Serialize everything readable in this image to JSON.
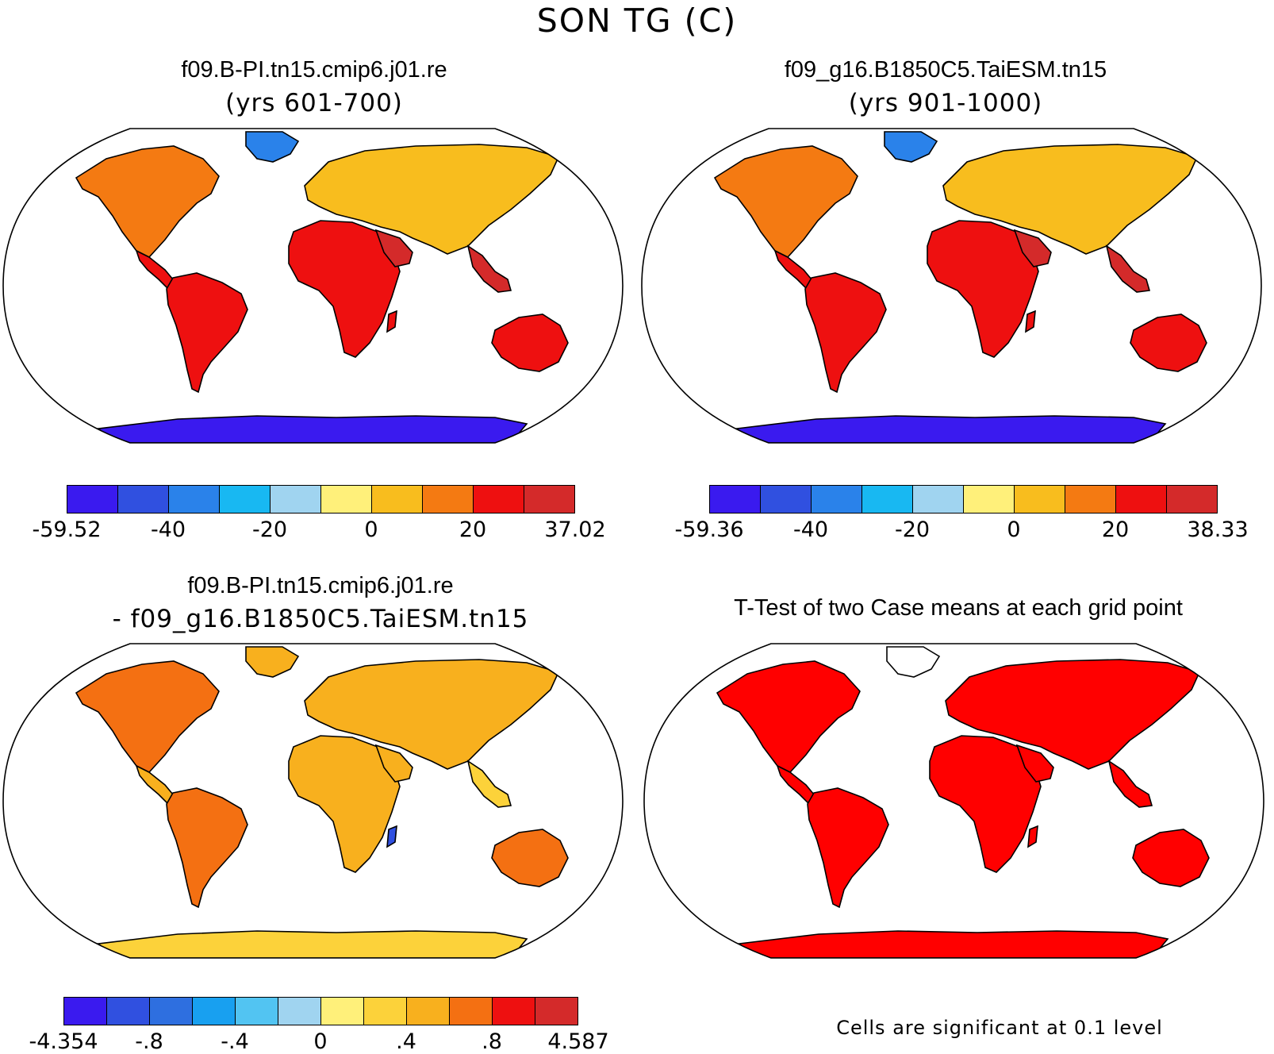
{
  "figure": {
    "title": "SON TG (C)"
  },
  "colors": {
    "scale_abs": [
      "#3a1aef",
      "#3050e0",
      "#2a82ea",
      "#18b8f2",
      "#a0d4f0",
      "#fff07a",
      "#f8bd1e",
      "#f47a12",
      "#ee1010",
      "#d42a2a"
    ],
    "scale_diff": [
      "#3a1aef",
      "#3050e0",
      "#2e6fe0",
      "#18a0f0",
      "#52c4f2",
      "#a0d4f0",
      "#fff07a",
      "#fcd23a",
      "#f8b01e",
      "#f47012",
      "#ee1010",
      "#d42a2a"
    ],
    "significance": "#ff0000",
    "coastline": "#000000"
  },
  "panels": [
    {
      "id": "case1",
      "title": "f09.B-PI.tn15.cmip6.j01.re",
      "subtitle": "(yrs 601-700)",
      "colorbar_labels": [
        "-59.52",
        "-40",
        "-20",
        "0",
        "20",
        "37.02"
      ]
    },
    {
      "id": "case2",
      "title": "f09_g16.B1850C5.TaiESM.tn15",
      "subtitle": "(yrs 901-1000)",
      "colorbar_labels": [
        "-59.36",
        "-40",
        "-20",
        "0",
        "20",
        "38.33"
      ]
    },
    {
      "id": "difference",
      "title": "f09.B-PI.tn15.cmip6.j01.re",
      "subtitle": "- f09_g16.B1850C5.TaiESM.tn15",
      "colorbar_labels": [
        "-4.354",
        "-.8",
        "-.4",
        "0",
        ".4",
        ".8",
        "4.587"
      ]
    },
    {
      "id": "ttest",
      "title": "T-Test of two Case means at each grid point",
      "note": "Cells are significant at 0.1 level"
    }
  ]
}
